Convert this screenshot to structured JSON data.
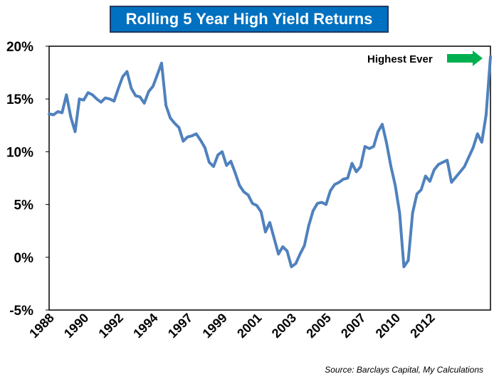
{
  "chart_data": {
    "type": "line",
    "title": "Rolling 5 Year High Yield Returns",
    "ylim": [
      -5,
      20
    ],
    "y_ticks": [
      "20%",
      "15%",
      "10%",
      "5%",
      "0%",
      "-5%"
    ],
    "y_tick_values": [
      20,
      15,
      10,
      5,
      0,
      -5
    ],
    "x_tick_labels": [
      "1988",
      "1990",
      "1992",
      "1994",
      "1997",
      "1999",
      "2001",
      "2003",
      "2005",
      "2007",
      "2010",
      "2012"
    ],
    "x_tick_index": [
      0,
      8,
      16,
      24,
      32,
      40,
      48,
      56,
      64,
      72,
      80,
      88
    ],
    "grid": false,
    "series": [
      {
        "color": "#4f81bd",
        "values": [
          13.6,
          13.5,
          13.8,
          13.7,
          15.4,
          13.3,
          11.9,
          15.0,
          14.9,
          15.6,
          15.4,
          15.0,
          14.7,
          15.1,
          15.0,
          14.8,
          16.0,
          17.1,
          17.6,
          16.0,
          15.3,
          15.2,
          14.6,
          15.7,
          16.2,
          17.3,
          18.4,
          14.4,
          13.2,
          12.7,
          12.3,
          11.0,
          11.4,
          11.5,
          11.7,
          11.1,
          10.4,
          9.0,
          8.6,
          9.7,
          10.0,
          8.7,
          9.1,
          8.0,
          6.8,
          6.2,
          5.9,
          5.1,
          4.9,
          4.3,
          2.4,
          3.3,
          1.8,
          0.3,
          1.0,
          0.6,
          -0.9,
          -0.6,
          0.3,
          1.1,
          3.0,
          4.4,
          5.1,
          5.2,
          5.0,
          6.3,
          6.9,
          7.1,
          7.4,
          7.5,
          8.9,
          8.1,
          8.6,
          10.5,
          10.3,
          10.5,
          11.9,
          12.6,
          10.8,
          8.6,
          6.8,
          4.2,
          -0.9,
          -0.3,
          4.2,
          6.0,
          6.4,
          7.7,
          7.2,
          8.3,
          8.8,
          9.0,
          9.2,
          7.1,
          7.6,
          8.1,
          8.6,
          9.5,
          10.4,
          11.7,
          10.9,
          13.5,
          19.0
        ]
      }
    ],
    "annotation": {
      "text": "Highest Ever",
      "arrow_color": "#00b050"
    },
    "source": "Source: Barclays Capital, My Calculations"
  }
}
